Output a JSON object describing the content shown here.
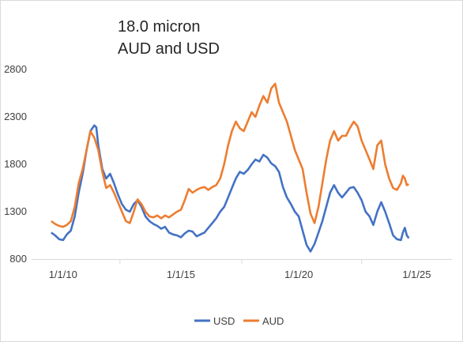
{
  "chart_data": {
    "type": "line",
    "title_lines": [
      "18.0 micron",
      "AUD and USD"
    ],
    "xlabel": "",
    "ylabel": "",
    "ylim": [
      800,
      2800
    ],
    "yticks": [
      800,
      1300,
      1800,
      2300,
      2800
    ],
    "xticks": [
      "1/1/10",
      "1/1/15",
      "1/1/20",
      "1/1/25"
    ],
    "xlim": [
      "2008-09-01",
      "2026-07-01"
    ],
    "grid": false,
    "legend": "bottom-center",
    "series": [
      {
        "name": "USD",
        "color": "#4472c4",
        "points": [
          [
            "2009-07-01",
            1080
          ],
          [
            "2009-09-01",
            1050
          ],
          [
            "2009-11-01",
            1010
          ],
          [
            "2010-01-01",
            1000
          ],
          [
            "2010-03-01",
            1060
          ],
          [
            "2010-05-01",
            1100
          ],
          [
            "2010-07-01",
            1250
          ],
          [
            "2010-09-01",
            1500
          ],
          [
            "2010-11-01",
            1700
          ],
          [
            "2011-01-01",
            1950
          ],
          [
            "2011-03-01",
            2150
          ],
          [
            "2011-05-01",
            2210
          ],
          [
            "2011-06-01",
            2190
          ],
          [
            "2011-07-01",
            2000
          ],
          [
            "2011-09-01",
            1750
          ],
          [
            "2011-11-01",
            1650
          ],
          [
            "2012-01-01",
            1700
          ],
          [
            "2012-03-01",
            1600
          ],
          [
            "2012-05-01",
            1480
          ],
          [
            "2012-07-01",
            1380
          ],
          [
            "2012-09-01",
            1320
          ],
          [
            "2012-11-01",
            1300
          ],
          [
            "2013-01-01",
            1380
          ],
          [
            "2013-03-01",
            1420
          ],
          [
            "2013-05-01",
            1350
          ],
          [
            "2013-07-01",
            1250
          ],
          [
            "2013-09-01",
            1200
          ],
          [
            "2013-11-01",
            1170
          ],
          [
            "2014-01-01",
            1150
          ],
          [
            "2014-03-01",
            1120
          ],
          [
            "2014-05-01",
            1140
          ],
          [
            "2014-07-01",
            1080
          ],
          [
            "2014-09-01",
            1060
          ],
          [
            "2014-11-01",
            1050
          ],
          [
            "2015-01-01",
            1030
          ],
          [
            "2015-03-01",
            1070
          ],
          [
            "2015-05-01",
            1100
          ],
          [
            "2015-07-01",
            1090
          ],
          [
            "2015-09-01",
            1040
          ],
          [
            "2015-11-01",
            1060
          ],
          [
            "2016-01-01",
            1080
          ],
          [
            "2016-03-01",
            1130
          ],
          [
            "2016-05-01",
            1180
          ],
          [
            "2016-07-01",
            1230
          ],
          [
            "2016-09-01",
            1300
          ],
          [
            "2016-11-01",
            1350
          ],
          [
            "2017-01-01",
            1450
          ],
          [
            "2017-03-01",
            1550
          ],
          [
            "2017-05-01",
            1650
          ],
          [
            "2017-07-01",
            1720
          ],
          [
            "2017-09-01",
            1700
          ],
          [
            "2017-11-01",
            1740
          ],
          [
            "2018-01-01",
            1800
          ],
          [
            "2018-03-01",
            1850
          ],
          [
            "2018-05-01",
            1830
          ],
          [
            "2018-07-01",
            1900
          ],
          [
            "2018-09-01",
            1870
          ],
          [
            "2018-11-01",
            1810
          ],
          [
            "2019-01-01",
            1780
          ],
          [
            "2019-03-01",
            1720
          ],
          [
            "2019-05-01",
            1560
          ],
          [
            "2019-07-01",
            1450
          ],
          [
            "2019-09-01",
            1380
          ],
          [
            "2019-11-01",
            1300
          ],
          [
            "2020-01-01",
            1250
          ],
          [
            "2020-03-01",
            1100
          ],
          [
            "2020-05-01",
            950
          ],
          [
            "2020-07-01",
            880
          ],
          [
            "2020-09-01",
            960
          ],
          [
            "2020-11-01",
            1080
          ],
          [
            "2021-01-01",
            1200
          ],
          [
            "2021-03-01",
            1350
          ],
          [
            "2021-05-01",
            1500
          ],
          [
            "2021-07-01",
            1580
          ],
          [
            "2021-09-01",
            1500
          ],
          [
            "2021-11-01",
            1450
          ],
          [
            "2022-01-01",
            1500
          ],
          [
            "2022-03-01",
            1550
          ],
          [
            "2022-05-01",
            1560
          ],
          [
            "2022-07-01",
            1500
          ],
          [
            "2022-09-01",
            1420
          ],
          [
            "2022-11-01",
            1300
          ],
          [
            "2023-01-01",
            1250
          ],
          [
            "2023-03-01",
            1160
          ],
          [
            "2023-05-01",
            1300
          ],
          [
            "2023-07-01",
            1400
          ],
          [
            "2023-09-01",
            1300
          ],
          [
            "2023-11-01",
            1180
          ],
          [
            "2024-01-01",
            1050
          ],
          [
            "2024-03-01",
            1010
          ],
          [
            "2024-05-01",
            1000
          ],
          [
            "2024-06-01",
            1080
          ],
          [
            "2024-07-01",
            1130
          ],
          [
            "2024-08-01",
            1050
          ],
          [
            "2024-09-01",
            1020
          ]
        ]
      },
      {
        "name": "AUD",
        "color": "#ed7d31",
        "points": [
          [
            "2009-07-01",
            1200
          ],
          [
            "2009-09-01",
            1170
          ],
          [
            "2009-11-01",
            1150
          ],
          [
            "2010-01-01",
            1140
          ],
          [
            "2010-03-01",
            1160
          ],
          [
            "2010-05-01",
            1200
          ],
          [
            "2010-07-01",
            1350
          ],
          [
            "2010-09-01",
            1600
          ],
          [
            "2010-11-01",
            1750
          ],
          [
            "2011-01-01",
            1950
          ],
          [
            "2011-03-01",
            2150
          ],
          [
            "2011-05-01",
            2080
          ],
          [
            "2011-07-01",
            1950
          ],
          [
            "2011-09-01",
            1720
          ],
          [
            "2011-11-01",
            1550
          ],
          [
            "2012-01-01",
            1580
          ],
          [
            "2012-03-01",
            1500
          ],
          [
            "2012-05-01",
            1400
          ],
          [
            "2012-07-01",
            1300
          ],
          [
            "2012-09-01",
            1200
          ],
          [
            "2012-11-01",
            1180
          ],
          [
            "2013-01-01",
            1300
          ],
          [
            "2013-03-01",
            1430
          ],
          [
            "2013-05-01",
            1380
          ],
          [
            "2013-07-01",
            1300
          ],
          [
            "2013-09-01",
            1250
          ],
          [
            "2013-11-01",
            1240
          ],
          [
            "2014-01-01",
            1260
          ],
          [
            "2014-03-01",
            1230
          ],
          [
            "2014-05-01",
            1260
          ],
          [
            "2014-07-01",
            1240
          ],
          [
            "2014-09-01",
            1270
          ],
          [
            "2014-11-01",
            1300
          ],
          [
            "2015-01-01",
            1320
          ],
          [
            "2015-03-01",
            1420
          ],
          [
            "2015-05-01",
            1540
          ],
          [
            "2015-07-01",
            1500
          ],
          [
            "2015-09-01",
            1530
          ],
          [
            "2015-11-01",
            1550
          ],
          [
            "2016-01-01",
            1560
          ],
          [
            "2016-03-01",
            1530
          ],
          [
            "2016-05-01",
            1560
          ],
          [
            "2016-07-01",
            1580
          ],
          [
            "2016-09-01",
            1650
          ],
          [
            "2016-11-01",
            1800
          ],
          [
            "2017-01-01",
            2000
          ],
          [
            "2017-03-01",
            2150
          ],
          [
            "2017-05-01",
            2250
          ],
          [
            "2017-07-01",
            2180
          ],
          [
            "2017-09-01",
            2150
          ],
          [
            "2017-11-01",
            2250
          ],
          [
            "2018-01-01",
            2350
          ],
          [
            "2018-03-01",
            2300
          ],
          [
            "2018-05-01",
            2420
          ],
          [
            "2018-07-01",
            2520
          ],
          [
            "2018-09-01",
            2450
          ],
          [
            "2018-11-01",
            2600
          ],
          [
            "2019-01-01",
            2650
          ],
          [
            "2019-03-01",
            2450
          ],
          [
            "2019-05-01",
            2350
          ],
          [
            "2019-07-01",
            2250
          ],
          [
            "2019-09-01",
            2100
          ],
          [
            "2019-11-01",
            1950
          ],
          [
            "2020-01-01",
            1850
          ],
          [
            "2020-03-01",
            1750
          ],
          [
            "2020-05-01",
            1500
          ],
          [
            "2020-07-01",
            1280
          ],
          [
            "2020-09-01",
            1180
          ],
          [
            "2020-11-01",
            1350
          ],
          [
            "2021-01-01",
            1600
          ],
          [
            "2021-03-01",
            1850
          ],
          [
            "2021-05-01",
            2050
          ],
          [
            "2021-07-01",
            2150
          ],
          [
            "2021-09-01",
            2050
          ],
          [
            "2021-11-01",
            2100
          ],
          [
            "2022-01-01",
            2100
          ],
          [
            "2022-03-01",
            2180
          ],
          [
            "2022-05-01",
            2250
          ],
          [
            "2022-07-01",
            2200
          ],
          [
            "2022-09-01",
            2050
          ],
          [
            "2022-11-01",
            1950
          ],
          [
            "2023-01-01",
            1850
          ],
          [
            "2023-03-01",
            1750
          ],
          [
            "2023-05-01",
            2000
          ],
          [
            "2023-07-01",
            2050
          ],
          [
            "2023-09-01",
            1800
          ],
          [
            "2023-11-01",
            1650
          ],
          [
            "2024-01-01",
            1550
          ],
          [
            "2024-03-01",
            1530
          ],
          [
            "2024-05-01",
            1600
          ],
          [
            "2024-06-01",
            1680
          ],
          [
            "2024-07-01",
            1650
          ],
          [
            "2024-08-01",
            1580
          ],
          [
            "2024-09-01",
            1590
          ]
        ]
      }
    ]
  }
}
